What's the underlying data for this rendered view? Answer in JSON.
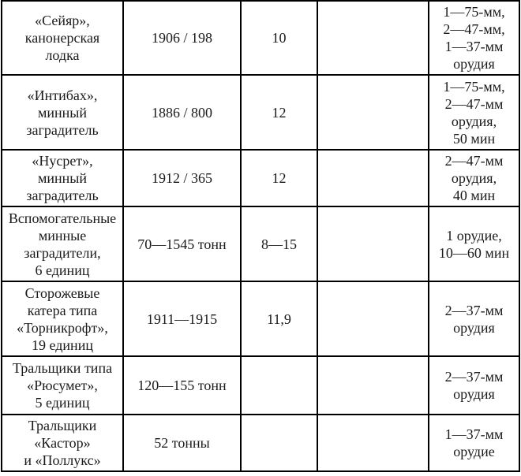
{
  "colors": {
    "border": "#000000",
    "text": "#1a1a1a",
    "background": "#ffffff"
  },
  "table": {
    "description": "Fragment of a printed reference table listing Ottoman/Turkish navy vessels: name/type, year built / displacement, speed, and armament",
    "rows": [
      {
        "cells": [
          "«Сейяр»,\nканонерская\nлодка",
          "1906 / 198",
          "10",
          "",
          "1—75-мм,\n2—47-мм,\n1—37-мм\nорудия"
        ]
      },
      {
        "cells": [
          "«Интибах»,\nминный\nзаградитель",
          "1886 / 800",
          "12",
          "",
          "1—75-мм,\n2—47-мм\nорудия,\n50 мин"
        ]
      },
      {
        "cells": [
          "«Нусрет»,\nминный\nзаградитель",
          "1912 / 365",
          "12",
          "",
          "2—47-мм\nорудия,\n40 мин"
        ]
      },
      {
        "cells": [
          "Вспомогательные\nминные\nзаградители,\n6 единиц",
          "70—1545 тонн",
          "8—15",
          "",
          "1 орудие,\n10—60 мин"
        ]
      },
      {
        "cells": [
          "Сторожевые\nкатера типа\n«Торникрофт»,\n19 единиц",
          "1911—1915",
          "11,9",
          "",
          "2—37-мм\nорудия"
        ]
      },
      {
        "cells": [
          "Тральщики типа\n«Рюсумет»,\n5 единиц",
          "120—155 тонн",
          "",
          "",
          "2—37-мм\nорудия"
        ]
      },
      {
        "cells": [
          "Тральщики\n«Кастор»\nи «Поллукс»",
          "52 тонны",
          "",
          "",
          "1—37-мм\nорудие"
        ]
      }
    ]
  }
}
